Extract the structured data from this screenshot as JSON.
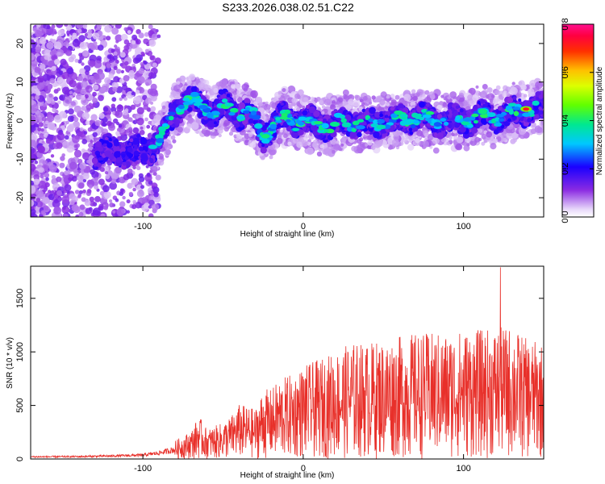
{
  "title": "S233.2026.038.02.51.C22",
  "chart_data": [
    {
      "type": "heatmap",
      "xlabel": "Height of straight line (km)",
      "ylabel": "Frequency (Hz)",
      "xlim": [
        -170,
        150
      ],
      "ylim": [
        -25,
        25
      ],
      "xticks": [
        -100,
        0,
        100
      ],
      "yticks": [
        -20,
        -10,
        0,
        10,
        20
      ],
      "ridge_x": [
        -170,
        -150,
        -130,
        -120,
        -110,
        -100,
        -95,
        -90,
        -85,
        -80,
        -75,
        -70,
        -65,
        -60,
        -55,
        -50,
        -45,
        -40,
        -35,
        -30,
        -25,
        -20,
        -15,
        -10,
        -5,
        0,
        10,
        20,
        30,
        40,
        50,
        60,
        70,
        80,
        90,
        100,
        110,
        120,
        130,
        140,
        150
      ],
      "ridge_y": [
        -8,
        -8,
        -8,
        -8,
        -8,
        -8,
        -7,
        -5,
        -2,
        2,
        5,
        5,
        4,
        3,
        2,
        4,
        3,
        2,
        2,
        0,
        -4,
        -2,
        0,
        1,
        0,
        0,
        -1,
        -1,
        0,
        -1,
        0,
        0,
        1,
        0,
        0,
        0,
        1,
        1,
        2,
        3,
        3
      ]
    },
    {
      "type": "line",
      "xlabel": "Height of straight line (km)",
      "ylabel": "SNR (10 * v/v)",
      "xlim": [
        -170,
        150
      ],
      "ylim": [
        0,
        1800
      ],
      "xticks": [
        -100,
        0,
        100
      ],
      "yticks": [
        0,
        500,
        1000,
        1500
      ],
      "envelope_x": [
        -170,
        -140,
        -120,
        -100,
        -90,
        -80,
        -70,
        -65,
        -60,
        -55,
        -50,
        -45,
        -40,
        -35,
        -30,
        -25,
        -20,
        -15,
        -10,
        -5,
        0,
        10,
        20,
        30,
        40,
        50,
        60,
        70,
        80,
        90,
        100,
        110,
        120,
        130,
        140,
        150
      ],
      "envelope_y": [
        25,
        28,
        35,
        45,
        70,
        110,
        170,
        260,
        180,
        200,
        220,
        260,
        330,
        320,
        300,
        420,
        420,
        480,
        500,
        520,
        560,
        600,
        650,
        700,
        700,
        720,
        740,
        760,
        760,
        760,
        780,
        780,
        790,
        800,
        720,
        700
      ],
      "color": "#e8302a",
      "peak": {
        "x": 123,
        "y": 1790
      }
    },
    {
      "type": "colorbar",
      "label": "Normalized spectral amplitude",
      "range": [
        0,
        0.8
      ],
      "ticks": [
        0.0,
        0.2,
        0.4,
        0.6,
        0.8
      ],
      "tick_labels": [
        "0.0",
        "0.2",
        "0.4",
        "0.6",
        "0.8"
      ]
    }
  ]
}
